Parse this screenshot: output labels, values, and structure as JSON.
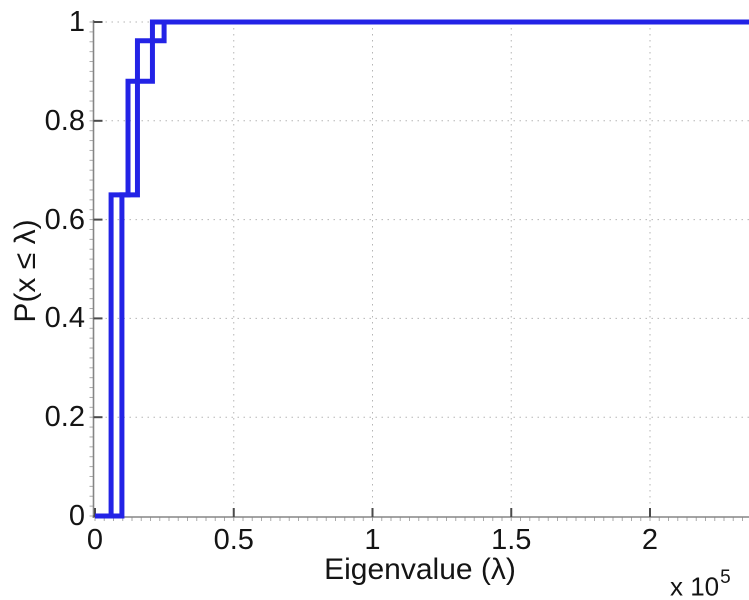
{
  "chart_data": {
    "type": "line",
    "subtype": "empirical-cdf-step",
    "title": "",
    "xlabel": "Eigenvalue (λ)",
    "ylabel": "P(x ≤ λ)",
    "x_multiplier_base": "x 10",
    "x_multiplier_exponent": "5",
    "x_unit_note": "x values are in units of 10^5",
    "xlim": [
      0,
      2.36
    ],
    "ylim": [
      0,
      1
    ],
    "xtick_values": [
      0,
      0.5,
      1,
      1.5,
      2
    ],
    "xtick_labels": [
      "0",
      "0.5",
      "1",
      "1.5",
      "2"
    ],
    "ytick_values": [
      0,
      0.2,
      0.4,
      0.6,
      0.8,
      1
    ],
    "ytick_labels": [
      "0",
      "0.2",
      "0.4",
      "0.6",
      "0.8",
      "1"
    ],
    "grid": "dotted major grid, light gray",
    "minor_ticks": true,
    "legend": null,
    "line_color": "#2323e6",
    "series": [
      {
        "name": "ecdf-curve-1",
        "color": "#2323e6",
        "points": [
          [
            0,
            0
          ],
          [
            0.058,
            0
          ],
          [
            0.058,
            0.65
          ],
          [
            0.119,
            0.65
          ],
          [
            0.119,
            0.88
          ],
          [
            0.207,
            0.88
          ],
          [
            0.207,
            1.0
          ],
          [
            2.36,
            1.0
          ]
        ]
      },
      {
        "name": "ecdf-curve-2",
        "color": "#2323e6",
        "points": [
          [
            0,
            0
          ],
          [
            0.097,
            0
          ],
          [
            0.097,
            0.65
          ],
          [
            0.153,
            0.65
          ],
          [
            0.153,
            0.962
          ],
          [
            0.249,
            0.962
          ],
          [
            0.249,
            1.0
          ],
          [
            2.36,
            1.0
          ]
        ]
      }
    ]
  }
}
